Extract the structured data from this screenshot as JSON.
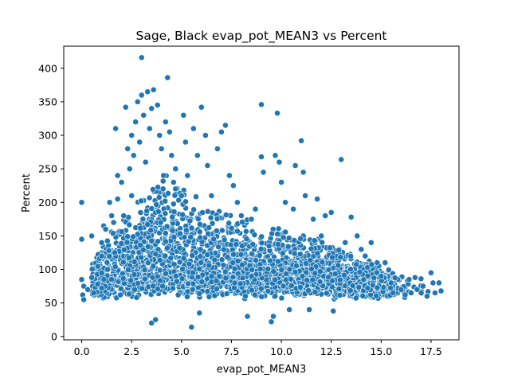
{
  "chart_data": {
    "type": "scatter",
    "title": "Sage, Black evap_pot_MEAN3 vs Percent",
    "xlabel": "evap_pot_MEAN3",
    "ylabel": "Percent",
    "xlim": [
      -0.9,
      18.9
    ],
    "ylim": [
      -5,
      433
    ],
    "xticks": [
      0.0,
      2.5,
      5.0,
      7.5,
      10.0,
      12.5,
      15.0,
      17.5
    ],
    "xtick_labels": [
      "0.0",
      "2.5",
      "5.0",
      "7.5",
      "10.0",
      "12.5",
      "15.0",
      "17.5"
    ],
    "yticks": [
      0,
      50,
      100,
      150,
      200,
      250,
      300,
      350,
      400
    ],
    "ytick_labels": [
      "0",
      "50",
      "100",
      "150",
      "200",
      "250",
      "300",
      "350",
      "400"
    ],
    "grid": false,
    "marker_color": "#1f77b4",
    "marker_edge_color": "#ffffff",
    "points": [
      [
        0.0,
        200
      ],
      [
        0.0,
        145
      ],
      [
        0.0,
        85
      ],
      [
        0.1,
        75
      ],
      [
        0.05,
        62
      ],
      [
        0.1,
        55
      ],
      [
        0.3,
        70
      ],
      [
        0.5,
        150
      ],
      [
        0.5,
        88
      ],
      [
        0.6,
        65
      ],
      [
        0.8,
        78
      ],
      [
        1.0,
        140
      ],
      [
        1.0,
        120
      ],
      [
        1.0,
        95
      ],
      [
        1.1,
        165
      ],
      [
        1.2,
        160
      ],
      [
        1.3,
        100
      ],
      [
        1.4,
        200
      ],
      [
        1.5,
        180
      ],
      [
        1.6,
        170
      ],
      [
        1.7,
        310
      ],
      [
        1.8,
        240
      ],
      [
        1.8,
        205
      ],
      [
        2.0,
        230
      ],
      [
        2.1,
        180
      ],
      [
        2.2,
        342
      ],
      [
        2.3,
        280
      ],
      [
        2.4,
        250
      ],
      [
        2.5,
        300
      ],
      [
        2.5,
        210
      ],
      [
        2.6,
        270
      ],
      [
        2.7,
        320
      ],
      [
        2.8,
        350
      ],
      [
        2.9,
        290
      ],
      [
        3.0,
        416
      ],
      [
        3.0,
        360
      ],
      [
        3.1,
        330
      ],
      [
        3.2,
        260
      ],
      [
        3.3,
        365
      ],
      [
        3.4,
        310
      ],
      [
        3.5,
        340
      ],
      [
        3.5,
        20
      ],
      [
        3.6,
        368
      ],
      [
        3.7,
        25
      ],
      [
        3.8,
        345
      ],
      [
        3.9,
        300
      ],
      [
        4.0,
        280
      ],
      [
        4.1,
        240
      ],
      [
        4.2,
        320
      ],
      [
        4.3,
        386
      ],
      [
        4.4,
        305
      ],
      [
        4.5,
        270
      ],
      [
        4.6,
        230
      ],
      [
        4.7,
        250
      ],
      [
        5.0,
        210
      ],
      [
        5.1,
        330
      ],
      [
        5.2,
        290
      ],
      [
        5.3,
        240
      ],
      [
        5.5,
        14
      ],
      [
        5.6,
        310
      ],
      [
        5.8,
        270
      ],
      [
        5.9,
        35
      ],
      [
        6.0,
        342
      ],
      [
        6.2,
        300
      ],
      [
        6.3,
        255
      ],
      [
        6.5,
        210
      ],
      [
        6.8,
        280
      ],
      [
        7.0,
        305
      ],
      [
        7.2,
        315
      ],
      [
        7.4,
        240
      ],
      [
        7.6,
        225
      ],
      [
        7.8,
        200
      ],
      [
        8.0,
        180
      ],
      [
        8.2,
        60
      ],
      [
        8.3,
        30
      ],
      [
        8.5,
        175
      ],
      [
        8.7,
        190
      ],
      [
        9.0,
        346
      ],
      [
        9.0,
        268
      ],
      [
        9.1,
        245
      ],
      [
        9.5,
        22
      ],
      [
        9.6,
        30
      ],
      [
        9.7,
        270
      ],
      [
        9.8,
        333
      ],
      [
        9.9,
        260
      ],
      [
        10.0,
        230
      ],
      [
        10.2,
        200
      ],
      [
        10.4,
        40
      ],
      [
        10.6,
        190
      ],
      [
        10.7,
        255
      ],
      [
        11.0,
        292
      ],
      [
        11.1,
        245
      ],
      [
        11.2,
        210
      ],
      [
        11.4,
        40
      ],
      [
        11.6,
        175
      ],
      [
        11.8,
        205
      ],
      [
        12.0,
        150
      ],
      [
        12.2,
        180
      ],
      [
        12.5,
        185
      ],
      [
        12.6,
        38
      ],
      [
        13.0,
        264
      ],
      [
        13.2,
        140
      ],
      [
        13.5,
        178
      ],
      [
        13.8,
        150
      ],
      [
        14.0,
        130
      ],
      [
        14.2,
        120
      ],
      [
        14.5,
        140
      ],
      [
        14.8,
        110
      ],
      [
        15.0,
        90
      ],
      [
        15.2,
        110
      ],
      [
        15.5,
        80
      ],
      [
        15.6,
        65
      ],
      [
        16.0,
        70
      ],
      [
        16.2,
        62
      ],
      [
        16.4,
        85
      ],
      [
        16.5,
        65
      ],
      [
        16.7,
        88
      ],
      [
        16.8,
        70
      ],
      [
        17.0,
        86
      ],
      [
        17.1,
        75
      ],
      [
        17.3,
        60
      ],
      [
        17.5,
        95
      ],
      [
        17.6,
        80
      ],
      [
        17.7,
        65
      ],
      [
        17.9,
        80
      ],
      [
        18.0,
        68
      ]
    ]
  }
}
